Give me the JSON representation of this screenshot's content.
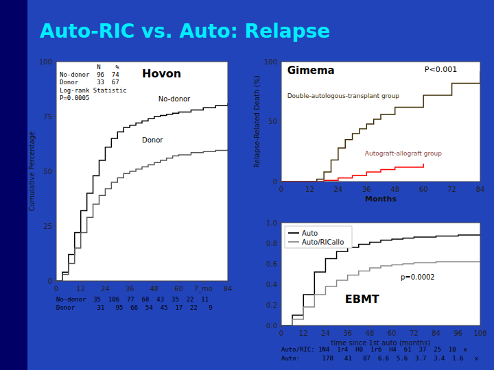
{
  "title": "Auto-RIC vs. Auto: Relapse",
  "chart_data": [
    {
      "type": "step",
      "title": "Hovon",
      "y_label": "Cumulative Percentage",
      "xlim": [
        0,
        84
      ],
      "ylim": [
        0,
        100
      ],
      "xticks": [
        0,
        12,
        24,
        36,
        48,
        60,
        {
          "value": 72,
          "label": "7_mo"
        },
        84
      ],
      "yticks": [
        0,
        25,
        50,
        75,
        100
      ],
      "series": [
        {
          "color": "#000000",
          "x": [
            0,
            3,
            6,
            9,
            12,
            15,
            18,
            21,
            24,
            27,
            30,
            33,
            36,
            39,
            42,
            45,
            48,
            51,
            54,
            57,
            60,
            66,
            72,
            78,
            84
          ],
          "values": [
            0,
            4,
            12,
            22,
            32,
            40,
            48,
            55,
            61,
            65,
            68,
            70,
            71,
            72,
            73,
            74,
            75,
            75.5,
            76,
            76.5,
            77,
            78,
            79,
            80,
            81
          ]
        },
        {
          "color": "#555555",
          "x": [
            0,
            3,
            6,
            9,
            12,
            15,
            18,
            21,
            24,
            27,
            30,
            33,
            36,
            39,
            42,
            45,
            48,
            51,
            54,
            57,
            60,
            66,
            72,
            78,
            84
          ],
          "values": [
            0,
            3,
            8,
            15,
            22,
            29,
            35,
            39,
            42,
            45,
            47,
            49,
            50,
            51,
            52,
            53,
            54,
            55,
            56,
            57,
            57.5,
            58.5,
            59,
            59.5,
            60
          ]
        }
      ],
      "annotations": [
        "No-donor",
        "Donor",
        "          N    %\nNo-donor  96  74\nDonor     33  67\nLog-rank Statistic\nP=0.0005",
        "No-donor  35  106  77  68  43  35  22  11",
        "Donor      31   95  66  54  45  17  22   9"
      ]
    },
    {
      "type": "step",
      "title": "Gimema",
      "x_label": "Months",
      "y_label": "Relapse-Related Death (%)",
      "xlim": [
        0,
        84
      ],
      "ylim": [
        0,
        100
      ],
      "xticks": [
        0,
        12,
        24,
        36,
        48,
        60,
        72,
        84
      ],
      "yticks": [
        0,
        50,
        100
      ],
      "series": [
        {
          "color": "#3A2A00",
          "x": [
            0,
            12,
            15,
            18,
            21,
            24,
            27,
            30,
            33,
            36,
            39,
            42,
            48,
            60,
            72,
            84
          ],
          "values": [
            0,
            0,
            2,
            8,
            18,
            28,
            35,
            40,
            44,
            48,
            52,
            56,
            62,
            72,
            82,
            92
          ]
        },
        {
          "color": "red",
          "x": [
            0,
            12,
            18,
            24,
            30,
            36,
            42,
            48,
            60
          ],
          "values": [
            0,
            0,
            1,
            3,
            5,
            8,
            10,
            12,
            15
          ]
        }
      ],
      "annotations": [
        "Double-autologous-transplant group",
        "Autograft-allograft group",
        "P<0.001"
      ]
    },
    {
      "type": "step",
      "title": "EBMT",
      "x_label": "time since 1st auto (months)",
      "xlim": [
        0,
        108
      ],
      "ylim": [
        0.0,
        1.0
      ],
      "xticks": [
        0,
        12,
        24,
        36,
        48,
        60,
        72,
        84,
        96,
        108
      ],
      "yticks": [
        {
          "value": 0.0,
          "label": "0.0"
        },
        0.2,
        0.4,
        0.6,
        0.8,
        {
          "value": 1.0,
          "label": "1.0"
        }
      ],
      "legend": "upper left",
      "series": [
        {
          "name": "Auto",
          "color": "#000000",
          "x": [
            0,
            6,
            12,
            18,
            24,
            30,
            36,
            42,
            48,
            54,
            60,
            66,
            72,
            84,
            96,
            108
          ],
          "values": [
            0.0,
            0.1,
            0.3,
            0.52,
            0.65,
            0.72,
            0.76,
            0.79,
            0.81,
            0.83,
            0.84,
            0.85,
            0.86,
            0.87,
            0.88,
            0.89
          ]
        },
        {
          "name": "Auto/RICallo",
          "color": "#888888",
          "x": [
            0,
            6,
            12,
            18,
            24,
            30,
            36,
            42,
            48,
            54,
            60,
            66,
            72,
            84,
            96,
            108
          ],
          "values": [
            0.0,
            0.06,
            0.18,
            0.3,
            0.38,
            0.44,
            0.49,
            0.53,
            0.56,
            0.58,
            0.59,
            0.6,
            0.61,
            0.62,
            0.62,
            0.62
          ]
        }
      ],
      "annotations": [
        "p=0.0002",
        "Auto/RIC: 1N4  1r4  H0  1r6  H4  61  37  25  10  x",
        "Auto:      178   41   87  6.6  5.6  3.7  3.4  1.6   x"
      ]
    }
  ]
}
